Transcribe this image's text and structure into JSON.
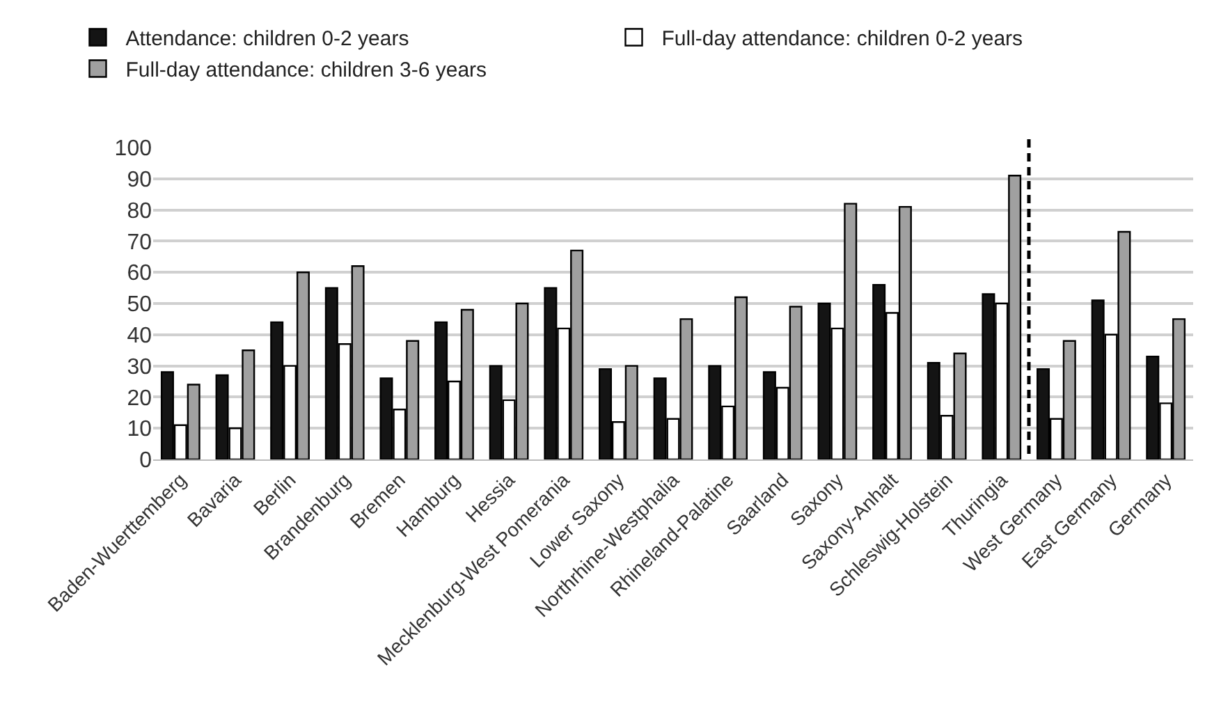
{
  "chart_data": {
    "type": "bar",
    "categories": [
      "Baden-Wuerttemberg",
      "Bavaria",
      "Berlin",
      "Brandenburg",
      "Bremen",
      "Hamburg",
      "Hessia",
      "Mecklenburg-West Pomerania",
      "Lower Saxony",
      "Northrhine-Westphalia",
      "Rhineland-Palatine",
      "Saarland",
      "Saxony",
      "Saxony-Anhalt",
      "Schleswig-Holstein",
      "Thuringia",
      "West Germany",
      "East Germany",
      "Germany"
    ],
    "series": [
      {
        "name": "Attendance: children 0-2 years",
        "color": "#141414",
        "values": [
          28,
          27,
          44,
          55,
          26,
          44,
          30,
          55,
          29,
          26,
          30,
          28,
          50,
          56,
          31,
          53,
          29,
          51,
          33
        ]
      },
      {
        "name": "Full-day attendance: children 0-2 years",
        "color": "#ffffff",
        "values": [
          11,
          10,
          30,
          37,
          16,
          25,
          19,
          42,
          12,
          13,
          17,
          23,
          42,
          47,
          14,
          50,
          13,
          40,
          18
        ]
      },
      {
        "name": "Full-day attendance: children 3-6 years",
        "color": "#a0a0a0",
        "values": [
          24,
          35,
          60,
          62,
          38,
          48,
          50,
          67,
          30,
          45,
          52,
          49,
          82,
          81,
          34,
          91,
          38,
          73,
          45
        ]
      }
    ],
    "ylim": [
      0,
      100
    ],
    "yticks": [
      0,
      10,
      20,
      30,
      40,
      50,
      60,
      70,
      80,
      90,
      100
    ],
    "grid": "y",
    "legend": "top left"
  }
}
